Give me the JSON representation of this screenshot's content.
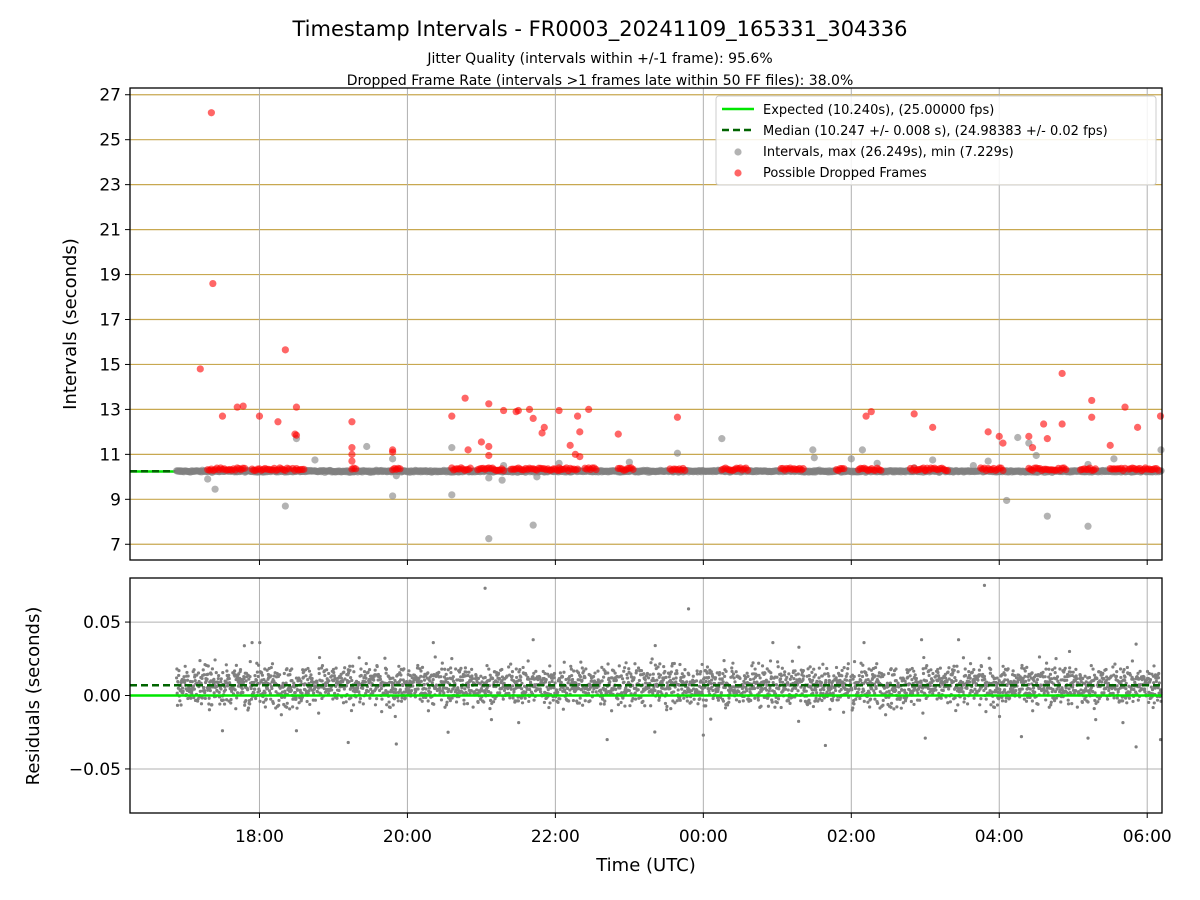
{
  "title": "Timestamp Intervals - FR0003_20241109_165331_304336",
  "subtitle_1": "Jitter Quality (intervals within +/-1 frame): 95.6%",
  "subtitle_2": "Dropped Frame Rate (intervals >1 frames late within 50 FF files): 38.0%",
  "colors": {
    "expected": "#00e600",
    "median": "#006400",
    "intervals": "#808080",
    "dropped": "#ff0000",
    "hgrid_top": "#c8a850",
    "grid": "#b0b0b0"
  },
  "chart_data": [
    {
      "type": "scatter",
      "name": "intervals-panel",
      "ylabel": "Intervals (seconds)",
      "ylim": [
        6.3,
        27.3
      ],
      "xlim": [
        16.25,
        30.2
      ],
      "yticks": [
        7,
        9,
        11,
        13,
        15,
        17,
        19,
        21,
        23,
        25,
        27
      ],
      "ytick_labels": [
        "7",
        "9",
        "11",
        "13",
        "15",
        "17",
        "19",
        "21",
        "23",
        "25",
        "27"
      ],
      "grid": "on",
      "legend_position": "top-right",
      "legend": [
        {
          "label": "Expected (10.240s), (25.00000 fps)",
          "kind": "line",
          "color": "#00e600"
        },
        {
          "label": "Median (10.247 +/- 0.008 s), (24.98383 +/- 0.02 fps)",
          "kind": "dashed",
          "color": "#006400"
        },
        {
          "label": "Intervals, max (26.249s), min (7.229s)",
          "kind": "dot",
          "color": "#808080"
        },
        {
          "label": "Possible Dropped Frames",
          "kind": "dot",
          "color": "#ff0000"
        }
      ],
      "expected": 10.24,
      "median": 10.247,
      "baseline_range": [
        16.88,
        30.2
      ],
      "dropped_band_x": [
        [
          17.3,
          17.8
        ],
        [
          17.9,
          18.4
        ],
        [
          18.45,
          18.6
        ],
        [
          19.25,
          19.3
        ],
        [
          19.8,
          19.9
        ],
        [
          20.6,
          20.85
        ],
        [
          20.95,
          21.3
        ],
        [
          21.4,
          22.05
        ],
        [
          22.05,
          22.3
        ],
        [
          22.4,
          22.55
        ],
        [
          22.85,
          23.05
        ],
        [
          23.55,
          23.75
        ],
        [
          24.25,
          24.6
        ],
        [
          25.05,
          25.35
        ],
        [
          25.8,
          25.9
        ],
        [
          26.1,
          26.4
        ],
        [
          26.8,
          27.0
        ],
        [
          27.0,
          27.3
        ],
        [
          27.75,
          28.05
        ],
        [
          28.4,
          28.9
        ],
        [
          29.1,
          29.3
        ],
        [
          29.5,
          29.7
        ],
        [
          29.75,
          30.15
        ]
      ],
      "dropped_points": [
        [
          17.2,
          14.8
        ],
        [
          17.35,
          26.2
        ],
        [
          17.37,
          18.6
        ],
        [
          17.5,
          12.7
        ],
        [
          17.7,
          13.1
        ],
        [
          17.78,
          13.15
        ],
        [
          18.0,
          12.7
        ],
        [
          18.25,
          12.45
        ],
        [
          18.35,
          15.65
        ],
        [
          18.5,
          13.1
        ],
        [
          18.48,
          11.9
        ],
        [
          18.5,
          11.85
        ],
        [
          19.25,
          12.45
        ],
        [
          19.25,
          11.3
        ],
        [
          19.25,
          11.0
        ],
        [
          19.25,
          10.7
        ],
        [
          19.8,
          11.2
        ],
        [
          19.8,
          11.1
        ],
        [
          20.6,
          12.7
        ],
        [
          20.78,
          13.5
        ],
        [
          20.82,
          11.2
        ],
        [
          21.0,
          11.55
        ],
        [
          21.1,
          13.25
        ],
        [
          21.1,
          11.35
        ],
        [
          21.1,
          10.95
        ],
        [
          21.3,
          12.95
        ],
        [
          21.47,
          12.9
        ],
        [
          21.5,
          12.95
        ],
        [
          21.65,
          13.0
        ],
        [
          21.7,
          12.6
        ],
        [
          21.82,
          11.95
        ],
        [
          21.85,
          12.2
        ],
        [
          22.05,
          12.95
        ],
        [
          22.2,
          11.4
        ],
        [
          22.27,
          11.0
        ],
        [
          22.3,
          12.7
        ],
        [
          22.33,
          12.0
        ],
        [
          22.33,
          10.9
        ],
        [
          22.45,
          13.0
        ],
        [
          22.85,
          11.9
        ],
        [
          23.65,
          12.65
        ],
        [
          26.2,
          12.7
        ],
        [
          26.27,
          12.9
        ],
        [
          26.85,
          12.8
        ],
        [
          27.1,
          12.2
        ],
        [
          27.85,
          12.0
        ],
        [
          28.0,
          11.8
        ],
        [
          28.05,
          11.5
        ],
        [
          28.4,
          11.8
        ],
        [
          28.45,
          11.3
        ],
        [
          28.6,
          12.35
        ],
        [
          28.65,
          11.7
        ],
        [
          28.85,
          14.6
        ],
        [
          28.85,
          12.35
        ],
        [
          29.25,
          13.4
        ],
        [
          29.25,
          12.65
        ],
        [
          29.5,
          11.4
        ],
        [
          29.7,
          13.1
        ],
        [
          29.87,
          12.2
        ],
        [
          30.18,
          12.7
        ]
      ],
      "interval_points": [
        [
          17.3,
          9.9
        ],
        [
          17.4,
          9.45
        ],
        [
          18.35,
          8.7
        ],
        [
          18.5,
          11.7
        ],
        [
          18.75,
          10.75
        ],
        [
          19.45,
          11.35
        ],
        [
          19.8,
          9.15
        ],
        [
          19.8,
          10.8
        ],
        [
          19.85,
          10.05
        ],
        [
          20.6,
          9.2
        ],
        [
          20.6,
          11.3
        ],
        [
          21.1,
          7.25
        ],
        [
          21.1,
          9.95
        ],
        [
          21.28,
          9.85
        ],
        [
          21.3,
          10.5
        ],
        [
          21.7,
          7.85
        ],
        [
          21.75,
          10.0
        ],
        [
          22.05,
          10.6
        ],
        [
          23.0,
          10.65
        ],
        [
          23.65,
          11.05
        ],
        [
          24.25,
          11.7
        ],
        [
          25.48,
          11.2
        ],
        [
          25.5,
          10.85
        ],
        [
          26.0,
          10.8
        ],
        [
          26.15,
          11.2
        ],
        [
          26.35,
          10.6
        ],
        [
          26.85,
          10.4
        ],
        [
          27.1,
          10.75
        ],
        [
          27.65,
          10.5
        ],
        [
          27.85,
          10.7
        ],
        [
          28.1,
          8.95
        ],
        [
          28.25,
          11.75
        ],
        [
          28.4,
          11.5
        ],
        [
          28.5,
          10.95
        ],
        [
          28.65,
          8.25
        ],
        [
          29.1,
          10.3
        ],
        [
          29.2,
          10.55
        ],
        [
          29.2,
          7.8
        ],
        [
          29.55,
          10.8
        ],
        [
          30.2,
          11.2
        ]
      ]
    },
    {
      "type": "scatter",
      "name": "residuals-panel",
      "ylabel": "Residuals (seconds)",
      "xlabel": "Time (UTC)",
      "ylim": [
        -0.08,
        0.08
      ],
      "xlim": [
        16.25,
        30.2
      ],
      "yticks": [
        0.05,
        0.0,
        -0.05
      ],
      "ytick_labels": [
        "0.05",
        "0.00",
        "−0.05"
      ],
      "xticks": [
        18,
        20,
        22,
        24,
        26,
        28,
        30
      ],
      "xtick_labels": [
        "18:00",
        "20:00",
        "22:00",
        "00:00",
        "02:00",
        "04:00",
        "06:00"
      ],
      "grid": "on",
      "expected": 0.0,
      "median": 0.007,
      "band_center": 0.007,
      "band_spread": 0.011,
      "outliers": [
        [
          21.05,
          0.073
        ],
        [
          23.8,
          0.059
        ],
        [
          27.8,
          0.075
        ],
        [
          19.2,
          -0.032
        ],
        [
          19.85,
          -0.033
        ],
        [
          20.55,
          -0.025
        ],
        [
          22.7,
          -0.03
        ],
        [
          25.65,
          -0.034
        ],
        [
          27.0,
          -0.029
        ],
        [
          29.2,
          -0.029
        ],
        [
          29.85,
          -0.035
        ],
        [
          30.18,
          -0.03
        ],
        [
          17.5,
          -0.024
        ],
        [
          18.5,
          -0.024
        ],
        [
          26.95,
          0.038
        ],
        [
          27.45,
          0.038
        ],
        [
          28.3,
          -0.028
        ],
        [
          24.0,
          -0.027
        ],
        [
          20.35,
          0.036
        ],
        [
          21.7,
          0.038
        ],
        [
          17.9,
          0.036
        ],
        [
          28.95,
          0.03
        ],
        [
          29.85,
          0.035
        ],
        [
          23.35,
          0.034
        ]
      ]
    }
  ]
}
